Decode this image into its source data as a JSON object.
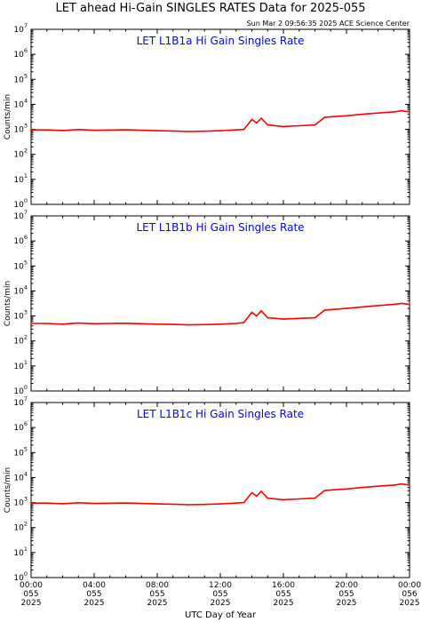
{
  "header": {
    "title": "LET ahead Hi-Gain SINGLES RATES Data for 2025-055",
    "timestamp": "Sun Mar  2 09:56:35 2025 ACE Science Center"
  },
  "xaxis": {
    "label": "UTC Day of Year",
    "ticks": [
      {
        "hours": 0,
        "lines": [
          "00:00",
          "055",
          "2025"
        ]
      },
      {
        "hours": 4,
        "lines": [
          "04:00",
          "055",
          "2025"
        ]
      },
      {
        "hours": 8,
        "lines": [
          "08:00",
          "055",
          "2025"
        ]
      },
      {
        "hours": 12,
        "lines": [
          "12:00",
          "055",
          "2025"
        ]
      },
      {
        "hours": 16,
        "lines": [
          "16:00",
          "055",
          "2025"
        ]
      },
      {
        "hours": 20,
        "lines": [
          "20:00",
          "055",
          "2025"
        ]
      },
      {
        "hours": 24,
        "lines": [
          "00:00",
          "056",
          "2025"
        ]
      }
    ]
  },
  "colors": {
    "trace": "#ff0000",
    "panel_title": "#0000ff",
    "axis": "#000000"
  },
  "chart_data": [
    {
      "type": "line",
      "title": "LET L1B1a Hi Gain Singles Rate",
      "ylabel": "Counts/min",
      "xlabel": "",
      "log_scale": true,
      "ylim": [
        1,
        10000000
      ],
      "xlim_hours": [
        0,
        24
      ],
      "ytick_labels": [
        "10^0",
        "10^1",
        "10^2",
        "10^3",
        "10^4",
        "10^5",
        "10^6",
        "10^7"
      ],
      "x_hours": [
        0,
        1,
        2,
        3,
        4,
        5,
        6,
        7,
        8,
        9,
        10,
        11,
        12,
        13,
        13.5,
        14,
        14.3,
        14.6,
        15,
        16,
        17,
        18,
        18.6,
        19,
        20,
        21,
        22,
        23,
        23.5,
        24
      ],
      "values": [
        950,
        950,
        900,
        980,
        920,
        940,
        960,
        920,
        880,
        860,
        820,
        840,
        880,
        950,
        1000,
        2500,
        1800,
        2800,
        1500,
        1300,
        1400,
        1500,
        3000,
        3200,
        3500,
        4000,
        4500,
        5000,
        5500,
        5000
      ]
    },
    {
      "type": "line",
      "title": "LET L1B1b Hi Gain Singles Rate",
      "ylabel": "Counts/min",
      "xlabel": "",
      "log_scale": true,
      "ylim": [
        1,
        10000000
      ],
      "xlim_hours": [
        0,
        24
      ],
      "ytick_labels": [
        "10^0",
        "10^1",
        "10^2",
        "10^3",
        "10^4",
        "10^5",
        "10^6",
        "10^7"
      ],
      "x_hours": [
        0,
        1,
        2,
        3,
        4,
        5,
        6,
        7,
        8,
        9,
        10,
        11,
        12,
        13,
        13.5,
        14,
        14.3,
        14.6,
        15,
        16,
        17,
        18,
        18.6,
        19,
        20,
        21,
        22,
        23,
        23.5,
        24
      ],
      "values": [
        500,
        500,
        470,
        520,
        490,
        500,
        510,
        490,
        470,
        460,
        440,
        450,
        470,
        500,
        550,
        1400,
        1000,
        1600,
        850,
        750,
        800,
        850,
        1700,
        1800,
        2000,
        2300,
        2600,
        2900,
        3200,
        2900
      ]
    },
    {
      "type": "line",
      "title": "LET L1B1c Hi Gain Singles Rate",
      "ylabel": "Counts/min",
      "xlabel": "",
      "log_scale": true,
      "ylim": [
        1,
        10000000
      ],
      "xlim_hours": [
        0,
        24
      ],
      "ytick_labels": [
        "10^0",
        "10^1",
        "10^2",
        "10^3",
        "10^4",
        "10^5",
        "10^6",
        "10^7"
      ],
      "x_hours": [
        0,
        1,
        2,
        3,
        4,
        5,
        6,
        7,
        8,
        9,
        10,
        11,
        12,
        13,
        13.5,
        14,
        14.3,
        14.6,
        15,
        16,
        17,
        18,
        18.6,
        19,
        20,
        21,
        22,
        23,
        23.5,
        24
      ],
      "values": [
        950,
        950,
        900,
        980,
        920,
        940,
        960,
        920,
        880,
        860,
        820,
        840,
        880,
        950,
        1000,
        2500,
        1800,
        2800,
        1500,
        1300,
        1400,
        1500,
        3000,
        3200,
        3500,
        4000,
        4500,
        5000,
        5500,
        5000
      ]
    }
  ]
}
